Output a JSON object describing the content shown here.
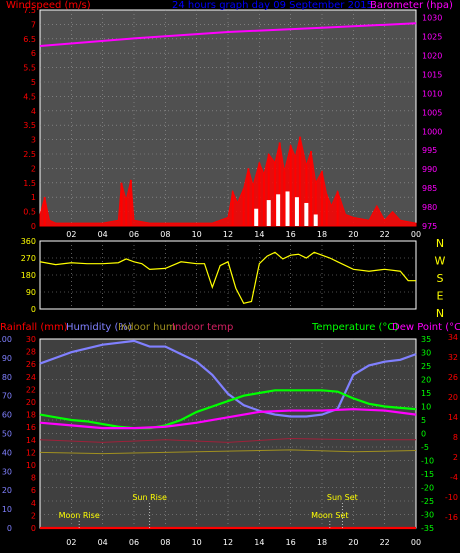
{
  "chart_data": [
    {
      "type": "line",
      "title": "24 hours graph day  09 September 2015",
      "left_axis": {
        "label": "Windspeed (m/s)",
        "ticks": [
          "0",
          "0.5",
          "1",
          "1.5",
          "2",
          "2.5",
          "3",
          "3.5",
          "4",
          "4.5",
          "5",
          "5.5",
          "6",
          "6.5",
          "7",
          "7.5"
        ],
        "ylim": [
          0,
          7.5
        ]
      },
      "right_axis": {
        "label": "Barometer (hpa)",
        "ticks": [
          "975",
          "980",
          "985",
          "990",
          "995",
          "1000",
          "1005",
          "1010",
          "1015",
          "1020",
          "1025",
          "1030"
        ],
        "ylim": [
          975,
          1032
        ]
      },
      "x_ticks": [
        "02",
        "04",
        "06",
        "08",
        "10",
        "12",
        "14",
        "16",
        "18",
        "20",
        "22",
        "00"
      ],
      "grid": true,
      "series": [
        {
          "name": "Windspeed (m/s)",
          "color": "#ff0000"
        },
        {
          "name": "Barometer (hpa)",
          "color": "#ff00ff"
        }
      ],
      "barometer": {
        "x": [
          0,
          6,
          12,
          18,
          24
        ],
        "y": [
          1022.5,
          1024.5,
          1026.2,
          1027.3,
          1028.5
        ]
      },
      "wind": {
        "hours": [
          0,
          0.3,
          0.6,
          1,
          2,
          3,
          4,
          5,
          5.2,
          5.5,
          5.8,
          6,
          7,
          8,
          9,
          10,
          11,
          12,
          12.3,
          12.6,
          13,
          13.3,
          13.6,
          14,
          14.3,
          14.6,
          15,
          15.3,
          15.6,
          16,
          16.3,
          16.6,
          17,
          17.3,
          17.6,
          18,
          18.3,
          18.6,
          19,
          19.5,
          20,
          21,
          21.5,
          22,
          22.5,
          23,
          24
        ],
        "speed": [
          0.4,
          1.0,
          0.2,
          0.1,
          0.1,
          0.1,
          0.1,
          0.2,
          1.5,
          0.9,
          1.6,
          0.2,
          0.1,
          0.1,
          0.1,
          0.1,
          0.1,
          0.3,
          1.2,
          0.8,
          1.3,
          2.0,
          1.4,
          2.2,
          1.8,
          2.5,
          2.2,
          2.9,
          1.9,
          2.8,
          2.4,
          3.1,
          2.1,
          2.6,
          1.5,
          1.9,
          1.1,
          0.7,
          1.2,
          0.4,
          0.3,
          0.2,
          0.7,
          0.2,
          0.5,
          0.2,
          0.1
        ]
      }
    },
    {
      "type": "line",
      "ylim": [
        0,
        360
      ],
      "y_ticks": [
        "0",
        "90",
        "180",
        "270",
        "360"
      ],
      "compass": [
        "N",
        "W",
        "S",
        "E",
        "N"
      ],
      "series": [
        {
          "name": "Wind direction",
          "color": "#ffff00"
        }
      ],
      "direction": {
        "hours": [
          0,
          1,
          2,
          3,
          4,
          5,
          5.5,
          6,
          6.5,
          7,
          8,
          9,
          10,
          10.5,
          11,
          11.5,
          12,
          12.5,
          13,
          13.5,
          14,
          14.5,
          15,
          15.5,
          16,
          16.5,
          17,
          17.5,
          18,
          18.5,
          19,
          20,
          21,
          22,
          23,
          23.5,
          24
        ],
        "deg": [
          250,
          235,
          245,
          240,
          240,
          245,
          265,
          250,
          240,
          210,
          215,
          250,
          240,
          240,
          115,
          230,
          250,
          110,
          30,
          40,
          240,
          280,
          300,
          265,
          285,
          290,
          270,
          300,
          285,
          270,
          250,
          210,
          200,
          210,
          200,
          150,
          150
        ]
      }
    },
    {
      "type": "line",
      "labels": {
        "rain": "Rainfall (mm)",
        "humidity": "Humidity (%)",
        "indoor_hum": "Indoor hum",
        "indoor_temp": "Indoor temp",
        "temperature": "Temperature (°C)",
        "dewpoint": "Dew Point (°C)"
      },
      "humidity_axis": {
        "ticks": [
          "0",
          "10",
          "20",
          "30",
          "40",
          "50",
          "60",
          "70",
          "80",
          "90",
          "100"
        ],
        "ylim": [
          0,
          100
        ]
      },
      "rain_axis": {
        "ticks": [
          "0",
          "2",
          "4",
          "6",
          "8",
          "10",
          "12",
          "14",
          "16",
          "18",
          "20",
          "22",
          "24",
          "26",
          "28",
          "30"
        ],
        "ylim": [
          0,
          30
        ]
      },
      "temp_axis": {
        "ticks": [
          "-35",
          "-30",
          "-25",
          "-20",
          "-15",
          "-10",
          "-5",
          "0",
          "5",
          "10",
          "15",
          "20",
          "25",
          "30",
          "35"
        ],
        "ylim": [
          -35,
          35
        ]
      },
      "indoor_axis": {
        "ticks": [
          "-16",
          "-10",
          "-4",
          "2",
          "8",
          "14",
          "20",
          "26",
          "32",
          "34"
        ]
      },
      "x_ticks": [
        "02",
        "04",
        "06",
        "08",
        "10",
        "12",
        "14",
        "16",
        "18",
        "20",
        "22",
        "00"
      ],
      "moon_rise": {
        "label": "Moon Rise",
        "hour": 2.5
      },
      "sun_rise": {
        "label": "Sun Rise",
        "hour": 7
      },
      "moon_set": {
        "label": "Moon Set",
        "hour": 18.5
      },
      "sun_set": {
        "label": "Sun Set",
        "hour": 19.3
      },
      "series": [
        {
          "name": "Humidity (%)",
          "color": "#8080ff",
          "hours": [
            0,
            1,
            2,
            3,
            4,
            5,
            6,
            7,
            8,
            9,
            10,
            11,
            12,
            13,
            14,
            15,
            16,
            17,
            18,
            19,
            20,
            21,
            22,
            23,
            24
          ],
          "values": [
            87,
            90,
            93,
            95,
            97,
            98,
            99,
            96,
            96,
            92,
            88,
            81,
            71,
            65,
            62,
            60,
            59,
            59,
            60,
            63,
            81,
            86,
            88,
            89,
            92
          ]
        },
        {
          "name": "Temperature (°C)",
          "color": "#00ff00",
          "hours": [
            0,
            1,
            2,
            3,
            4,
            5,
            6,
            7,
            8,
            9,
            10,
            11,
            12,
            13,
            14,
            15,
            16,
            17,
            18,
            19,
            20,
            21,
            22,
            23,
            24
          ],
          "values": [
            7,
            6,
            5,
            4.5,
            3.5,
            2.5,
            2,
            2,
            3,
            5,
            8,
            10,
            12,
            14,
            15,
            16,
            16,
            16,
            16,
            15.5,
            13,
            11,
            10,
            9.5,
            9
          ]
        },
        {
          "name": "Dew Point (°C)",
          "color": "#ff00ff",
          "hours": [
            0,
            2,
            4,
            6,
            8,
            10,
            12,
            14,
            16,
            18,
            20,
            22,
            24
          ],
          "values": [
            4,
            3,
            2,
            2,
            2.5,
            4,
            6,
            8,
            8.5,
            8.5,
            9,
            8.5,
            7
          ]
        },
        {
          "name": "Indoor temp",
          "color": "#a0203a",
          "hours": [
            0,
            4,
            8,
            12,
            16,
            20,
            24
          ],
          "values": [
            14,
            13.6,
            14,
            13.6,
            14.2,
            14,
            14
          ]
        },
        {
          "name": "Indoor hum",
          "color": "#a09020",
          "hours": [
            0,
            4,
            8,
            12,
            16,
            20,
            24
          ],
          "values": [
            12,
            11.8,
            12,
            12.2,
            12.4,
            12.1,
            12.3
          ]
        },
        {
          "name": "Rainfall (mm)",
          "color": "#ff0000",
          "hours": [
            0,
            24
          ],
          "values": [
            0,
            0
          ]
        }
      ]
    }
  ]
}
